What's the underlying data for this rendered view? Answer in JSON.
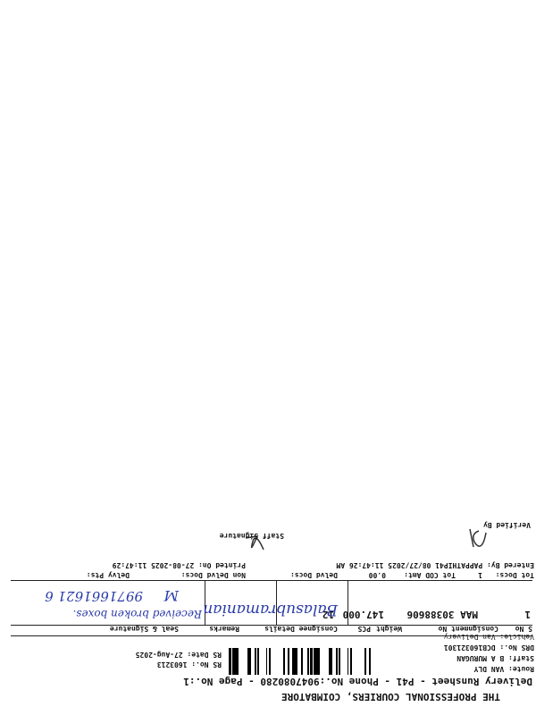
{
  "header": {
    "title": "THE PROFESSIONAL COURIERS, COIMBATORE",
    "subtitle": "Delivery Runsheet - P41 - Phone No.:9047080280 - Page No.:1"
  },
  "details": {
    "route": "Route: VAN DLY",
    "staff": "Staff: B A MURUGAN",
    "drs_no": "DRS No.: DCB160321301",
    "vehicle": "Vehicle: Van Delivery",
    "rs_no": "RS No.: 1603213",
    "rs_date": "RS Date: 27-Aug-2025"
  },
  "table": {
    "headers": [
      "S No",
      "Consignment No",
      "Weight",
      "PCS",
      "Consignee Details",
      "Remarks",
      "Seal & Signature"
    ],
    "rows": [
      [
        "1",
        "MAA 30388606",
        "147.000",
        "12"
      ]
    ]
  },
  "handwriting": {
    "consignee": "Balasubramanian",
    "remarks": "Received broken boxes.",
    "signature": "M",
    "phone": "9971661621 6"
  },
  "summary": {
    "tot_docs": "Tot Docs:",
    "tot_docs_value": "1",
    "tot_cod": "Tot COD Amt:",
    "tot_cod_value": "0.00",
    "delvd": "Delvd Docs:",
    "non_delvd": "Non Delvd Docs:",
    "delvy_pts": "Delvy Pts:",
    "entered_by": "Entered By: PAPPATHIP41 08/27/2025 11:47:26 AM",
    "printed_on": "Printed On: 27-08-2025 11:47:29"
  },
  "footer": {
    "staff_signature": "Staff Signature",
    "verified_by": "Verified By"
  }
}
